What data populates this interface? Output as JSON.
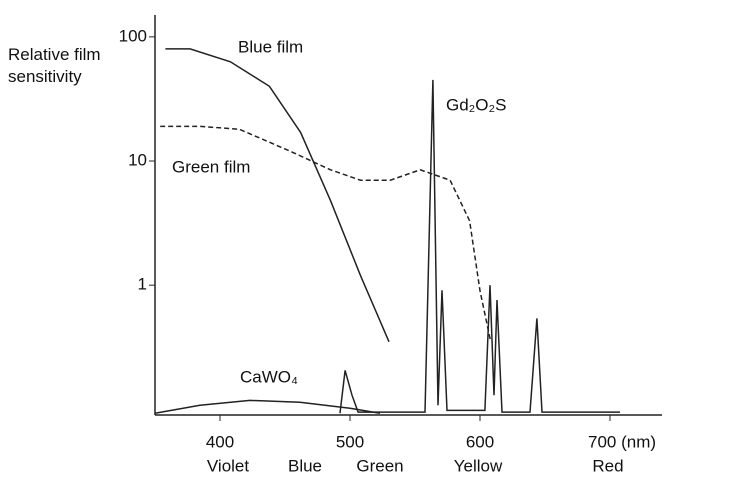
{
  "chart_data": {
    "type": "line",
    "y_label": "Relative film sensitivity",
    "log_y": true,
    "xlim": [
      350,
      740
    ],
    "ylim": [
      0.09,
      150
    ],
    "xticks": [
      400,
      500,
      600,
      {
        "value": 700,
        "label": "700 (nm)"
      }
    ],
    "yticks": [
      1,
      10,
      100
    ],
    "band_labels": [
      "Violet",
      "Blue",
      "Green",
      "Yellow",
      "Red"
    ],
    "series": [
      {
        "name": "Blue film",
        "color": "#222222",
        "dash": false,
        "x": [
          358,
          377,
          408,
          438,
          462,
          485,
          508,
          530
        ],
        "values": [
          80,
          80,
          63,
          40,
          17,
          4.8,
          1.2,
          0.35
        ]
      },
      {
        "name": "Green film",
        "color": "#222222",
        "dash": true,
        "x": [
          354,
          385,
          415,
          454,
          485,
          508,
          531,
          554,
          577,
          592,
          600,
          608
        ],
        "values": [
          19,
          19,
          18,
          12,
          8.5,
          7,
          7,
          8.5,
          7,
          3.3,
          0.9,
          0.36
        ]
      },
      {
        "name": "Gd₂O₂S",
        "color": "#222222",
        "dash": false,
        "x": [
          492.3,
          496.2,
          501.5,
          506.2,
          557.7,
          563.8,
          567.7,
          570.8,
          574.6,
          603.8,
          607.7,
          610.8,
          613.1,
          616.9,
          638.5,
          643.8,
          647.7,
          707.7
        ],
        "values": [
          0.093,
          0.206,
          0.13,
          0.095,
          0.095,
          45,
          0.108,
          0.91,
          0.098,
          0.098,
          1.0,
          0.13,
          0.76,
          0.095,
          0.095,
          0.54,
          0.095,
          0.095
        ]
      },
      {
        "name": "CaWO₄",
        "color": "#222222",
        "dash": false,
        "x": [
          350,
          384.6,
          423,
          461.5,
          500,
          523
        ],
        "values": [
          0.093,
          0.108,
          0.118,
          0.114,
          0.102,
          0.093
        ]
      }
    ]
  }
}
